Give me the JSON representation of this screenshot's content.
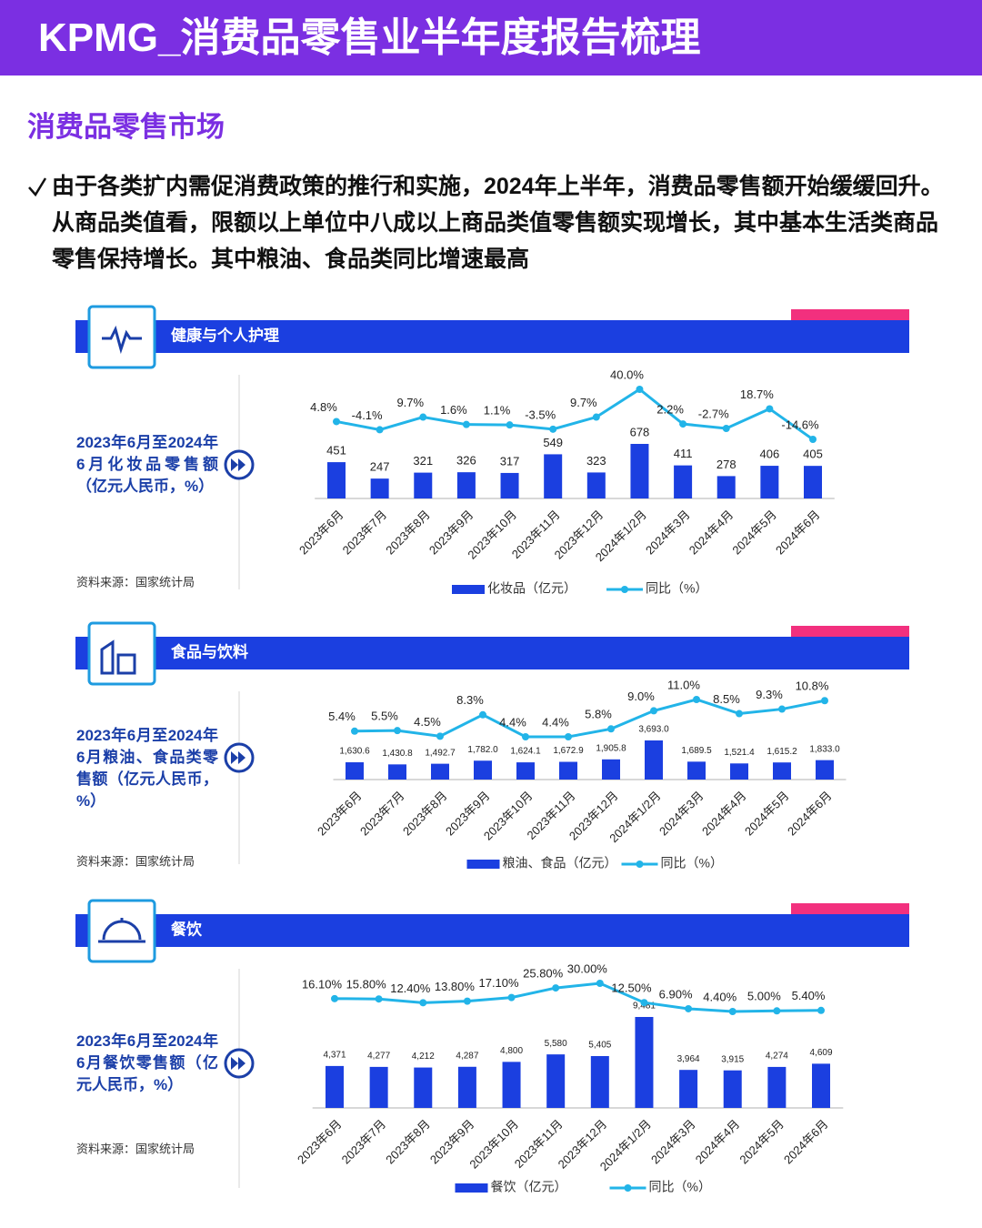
{
  "header": {
    "title": "KPMG_消费品零售业半年度报告梳理"
  },
  "section_title": "消费品零售市场",
  "summary": "由于各类扩内需促消费政策的推行和实施，2024年上半年，消费品零售额开始缓缓回升。从商品类值看，限额以上单位中八成以上商品类值零售额实现增长，其中基本生活类商品零售保持增长。其中粮油、食品类同比增速最高",
  "chart_data": [
    {
      "type": "combo",
      "title": "健康与个人护理",
      "subtitle": "2023年6月至2024年6月化妆品零售额（亿元人民币，%）",
      "source": "资料来源：国家统计局",
      "categories": [
        "2023年6月",
        "2023年7月",
        "2023年8月",
        "2023年9月",
        "2023年10月",
        "2023年11月",
        "2023年12月",
        "2024年1/2月",
        "2024年3月",
        "2024年4月",
        "2024年5月",
        "2024年6月"
      ],
      "series": [
        {
          "name": "化妆品（亿元）",
          "color": "#1b3fe0",
          "kind": "bar",
          "values": [
            451,
            247,
            321,
            326,
            317,
            549,
            323,
            678,
            411,
            278,
            406,
            405
          ]
        },
        {
          "name": "同比（%）",
          "color": "#22b4e8",
          "kind": "line",
          "values": [
            4.8,
            -4.1,
            9.7,
            1.6,
            1.1,
            -3.5,
            9.7,
            40.0,
            2.2,
            -2.7,
            18.7,
            -14.6
          ],
          "value_labels": [
            "4.8%",
            "-4.1%",
            "9.7%",
            "1.6%",
            "1.1%",
            "-3.5%",
            "9.7%",
            "40.0%",
            "2.2%",
            "-2.7%",
            "18.7%",
            "-14.6%"
          ]
        }
      ]
    },
    {
      "type": "combo",
      "title": "食品与饮料",
      "subtitle": "2023年6月至2024年6月粮油、食品类零售额（亿元人民币，%）",
      "source": "资料来源：国家统计局",
      "categories": [
        "2023年6月",
        "2023年7月",
        "2023年8月",
        "2023年9月",
        "2023年10月",
        "2023年11月",
        "2023年12月",
        "2024年1/2月",
        "2024年3月",
        "2024年4月",
        "2024年5月",
        "2024年6月"
      ],
      "series": [
        {
          "name": "粮油、食品（亿元）",
          "color": "#1b3fe0",
          "kind": "bar",
          "values": [
            1630.6,
            1430.8,
            1492.7,
            1782.0,
            1624.1,
            1672.9,
            1905.8,
            3693.0,
            1689.5,
            1521.4,
            1615.2,
            1833.0
          ],
          "value_labels": [
            "1,630.6",
            "1,430.8",
            "1,492.7",
            "1,782.0",
            "1,624.1",
            "1,672.9",
            "1,905.8",
            "3,693.0",
            "1,689.5",
            "1,521.4",
            "1,615.2",
            "1,833.0"
          ]
        },
        {
          "name": "同比（%）",
          "color": "#22b4e8",
          "kind": "line",
          "values": [
            5.4,
            5.5,
            4.5,
            8.3,
            4.4,
            4.4,
            5.8,
            9.0,
            11.0,
            8.5,
            9.3,
            10.8
          ],
          "value_labels": [
            "5.4%",
            "5.5%",
            "4.5%",
            "8.3%",
            "4.4%",
            "4.4%",
            "5.8%",
            "9.0%",
            "11.0%",
            "8.5%",
            "9.3%",
            "10.8%"
          ]
        }
      ]
    },
    {
      "type": "combo",
      "title": "餐饮",
      "subtitle": "2023年6月至2024年6月餐饮零售额（亿元人民币，%）",
      "source": "资料来源：国家统计局",
      "categories": [
        "2023年6月",
        "2023年7月",
        "2023年8月",
        "2023年9月",
        "2023年10月",
        "2023年11月",
        "2023年12月",
        "2024年1/2月",
        "2024年3月",
        "2024年4月",
        "2024年5月",
        "2024年6月"
      ],
      "series": [
        {
          "name": "餐饮（亿元）",
          "color": "#1b3fe0",
          "kind": "bar",
          "values": [
            4371,
            4277,
            4212,
            4287,
            4800,
            5580,
            5405,
            9481,
            3964,
            3915,
            4274,
            4609
          ],
          "value_labels": [
            "4,371",
            "4,277",
            "4,212",
            "4,287",
            "4,800",
            "5,580",
            "5,405",
            "9,481",
            "3,964",
            "3,915",
            "4,274",
            "4,609"
          ]
        },
        {
          "name": "同比（%）",
          "color": "#22b4e8",
          "kind": "line",
          "values": [
            16.1,
            15.8,
            12.4,
            13.8,
            17.1,
            25.8,
            30.0,
            12.5,
            6.9,
            4.4,
            5.0,
            5.4
          ],
          "value_labels": [
            "16.10%",
            "15.80%",
            "12.40%",
            "13.80%",
            "17.10%",
            "25.80%",
            "30.00%",
            "12.50%",
            "6.90%",
            "4.40%",
            "5.00%",
            "5.40%"
          ]
        }
      ]
    }
  ]
}
